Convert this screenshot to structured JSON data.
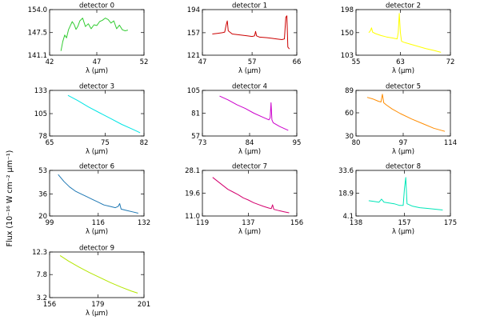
{
  "figure": {
    "ylabel": "Flux (10⁻¹⁶ W cm⁻² μm⁻¹)",
    "xlabel": "λ (μm)"
  },
  "chart_data": [
    {
      "type": "line",
      "title": "detector 0",
      "xlabel": "λ (μm)",
      "xlim": [
        42,
        52
      ],
      "ylim": [
        141.1,
        154.0
      ],
      "xticks": [
        "42",
        "47",
        "52"
      ],
      "yticks": [
        "141.1",
        "147.5",
        "154.0"
      ],
      "color": "#33cc33",
      "series": [
        {
          "x": [
            43.2,
            43.4,
            43.6,
            43.8,
            44.0,
            44.2,
            44.4,
            44.6,
            44.8,
            45.0,
            45.2,
            45.5,
            45.8,
            46.1,
            46.4,
            46.7,
            47.0,
            47.3,
            47.6,
            47.9,
            48.2,
            48.5,
            48.8,
            49.1,
            49.4,
            49.7,
            50.0,
            50.3
          ],
          "y": [
            142.3,
            145.0,
            146.8,
            146.0,
            148.3,
            149.5,
            150.6,
            149.8,
            148.4,
            149.3,
            150.8,
            151.6,
            149.2,
            150.0,
            148.6,
            149.7,
            149.5,
            150.6,
            151.0,
            151.6,
            151.2,
            150.2,
            150.8,
            148.6,
            149.6,
            148.3,
            148.0,
            148.2
          ]
        }
      ]
    },
    {
      "type": "line",
      "title": "detector 1",
      "xlabel": "λ (μm)",
      "xlim": [
        47,
        66
      ],
      "ylim": [
        121,
        194
      ],
      "xticks": [
        "47",
        "57",
        "66"
      ],
      "yticks": [
        "121",
        "157",
        "194"
      ],
      "color": "#cc0000",
      "series": [
        {
          "x": [
            49.0,
            50.0,
            51.0,
            51.5,
            51.8,
            52.0,
            52.2,
            53.0,
            54.0,
            55.0,
            56.0,
            57.0,
            57.5,
            57.7,
            57.9,
            58.5,
            60.0,
            61.0,
            62.0,
            63.0,
            63.5,
            63.8,
            64.0,
            64.2,
            64.5
          ],
          "y": [
            155,
            156,
            157,
            158,
            170,
            176,
            160,
            155,
            154,
            153,
            152,
            151,
            152,
            159,
            152,
            150,
            149,
            148,
            147,
            146,
            147,
            182,
            184,
            134,
            131
          ]
        }
      ]
    },
    {
      "type": "line",
      "title": "detector 2",
      "xlabel": "λ (μm)",
      "xlim": [
        55,
        72
      ],
      "ylim": [
        103,
        198
      ],
      "xticks": [
        "55",
        "63",
        "72"
      ],
      "yticks": [
        "103",
        "150",
        "198"
      ],
      "color": "#ffff00",
      "series": [
        {
          "x": [
            57.3,
            57.6,
            57.8,
            58.0,
            58.5,
            59.5,
            60.5,
            61.5,
            62.4,
            62.6,
            62.8,
            63.0,
            63.2,
            63.6,
            64.5,
            66.0,
            67.5,
            69.0,
            70.3
          ],
          "y": [
            150,
            154,
            160,
            151,
            148,
            144,
            141,
            139,
            137,
            150,
            190,
            150,
            132,
            130,
            127,
            122,
            117,
            113,
            109
          ]
        }
      ]
    },
    {
      "type": "line",
      "title": "detector 3",
      "xlabel": "λ (μm)",
      "xlim": [
        65,
        82
      ],
      "ylim": [
        78,
        133
      ],
      "xticks": [
        "65",
        "75",
        "82"
      ],
      "yticks": [
        "78",
        "105",
        "133"
      ],
      "color": "#00e5e5",
      "series": [
        {
          "x": [
            68.3,
            70,
            72,
            74,
            76,
            78,
            80,
            81.3
          ],
          "y": [
            127,
            121,
            113,
            106,
            99,
            92,
            86,
            82
          ]
        }
      ]
    },
    {
      "type": "line",
      "title": "detector 4",
      "xlabel": "λ (μm)",
      "xlim": [
        73,
        95
      ],
      "ylim": [
        57,
        105
      ],
      "xticks": [
        "73",
        "84",
        "95"
      ],
      "yticks": [
        "57",
        "81",
        "105"
      ],
      "color": "#cc00cc",
      "series": [
        {
          "x": [
            77,
            79,
            81,
            83,
            85,
            87,
            88.5,
            88.8,
            89.0,
            89.2,
            89.5,
            91,
            93
          ],
          "y": [
            99,
            95,
            90,
            86,
            81,
            77,
            74,
            76,
            92,
            74,
            71,
            67,
            63
          ]
        }
      ]
    },
    {
      "type": "line",
      "title": "detector 5",
      "xlabel": "λ (μm)",
      "xlim": [
        80,
        114
      ],
      "ylim": [
        30,
        89
      ],
      "xticks": [
        "80",
        "97",
        "114"
      ],
      "yticks": [
        "30",
        "60",
        "89"
      ],
      "color": "#ff8c00",
      "series": [
        {
          "x": [
            84,
            86,
            88,
            89,
            89.5,
            90,
            91,
            93,
            96,
            100,
            104,
            108,
            112
          ],
          "y": [
            80,
            78,
            75,
            74,
            84,
            73,
            70,
            65,
            59,
            52,
            46,
            40,
            36
          ]
        }
      ]
    },
    {
      "type": "line",
      "title": "detector 6",
      "xlabel": "λ (μm)",
      "xlim": [
        99,
        132
      ],
      "ylim": [
        20,
        53
      ],
      "xticks": [
        "99",
        "116",
        "132"
      ],
      "yticks": [
        "20",
        "36",
        "53"
      ],
      "color": "#1e78b4",
      "series": [
        {
          "x": [
            102,
            104,
            106,
            108,
            110,
            112,
            114,
            116,
            118,
            120,
            122,
            123,
            123.5,
            124,
            126,
            128,
            130
          ],
          "y": [
            50,
            45,
            41,
            38,
            36,
            34,
            32,
            30,
            28,
            27,
            26,
            27,
            29,
            25,
            24,
            23,
            22
          ]
        }
      ]
    },
    {
      "type": "line",
      "title": "detector 7",
      "xlabel": "λ (μm)",
      "xlim": [
        119,
        156
      ],
      "ylim": [
        11.0,
        28.1
      ],
      "xticks": [
        "119",
        "137",
        "156"
      ],
      "yticks": [
        "11.0",
        "19.6",
        "28.1"
      ],
      "color": "#d4006e",
      "series": [
        {
          "x": [
            123,
            125,
            127,
            129,
            131,
            133,
            135,
            137,
            139,
            141,
            143,
            145,
            146,
            146.5,
            147,
            149,
            151,
            153
          ],
          "y": [
            25.5,
            24,
            22.5,
            21,
            20,
            19,
            17.8,
            17,
            16,
            15.3,
            14.6,
            14.0,
            13.8,
            15.2,
            13.5,
            13,
            12.6,
            12.2
          ]
        }
      ]
    },
    {
      "type": "line",
      "title": "detector 8",
      "xlabel": "λ (μm)",
      "xlim": [
        138,
        175
      ],
      "ylim": [
        4.1,
        33.6
      ],
      "xticks": [
        "138",
        "157",
        "175"
      ],
      "yticks": [
        "33.6",
        "18.9",
        "4.1"
      ],
      "color": "#00e6b8",
      "series": [
        {
          "x": [
            143,
            145,
            147,
            148,
            149,
            151,
            153,
            155,
            156.5,
            157,
            157.5,
            158,
            160,
            163,
            166,
            169,
            172
          ],
          "y": [
            14,
            13.5,
            13,
            15,
            13,
            12.5,
            12,
            11,
            11,
            22,
            29,
            12,
            10.5,
            9.5,
            9,
            8.5,
            8
          ]
        }
      ]
    },
    {
      "type": "line",
      "title": "detector 9",
      "xlabel": "λ (μm)",
      "xlim": [
        156,
        201
      ],
      "ylim": [
        3.2,
        12.3
      ],
      "xticks": [
        "156",
        "179",
        "201"
      ],
      "yticks": [
        "3.2",
        "7.8",
        "12.3"
      ],
      "color": "#b4e600",
      "series": [
        {
          "x": [
            161,
            165,
            170,
            175,
            180,
            185,
            190,
            195,
            198
          ],
          "y": [
            11.6,
            10.5,
            9.3,
            8.2,
            7.2,
            6.2,
            5.3,
            4.5,
            4.1
          ]
        }
      ]
    }
  ]
}
